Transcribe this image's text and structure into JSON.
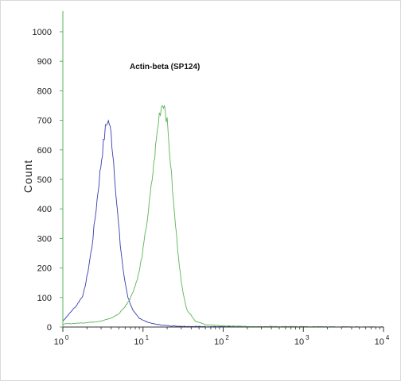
{
  "chart_data": {
    "type": "line",
    "title": "Actin-beta (SP124)",
    "ylabel": "Count",
    "xlabel": "",
    "x_scale": "log",
    "xlim": [
      1,
      10000
    ],
    "ylim": [
      0,
      1000
    ],
    "y_ticks": [
      "0",
      "100",
      "200",
      "300",
      "400",
      "500",
      "600",
      "700",
      "800",
      "900",
      "1000"
    ],
    "x_ticks": [
      {
        "base": "10",
        "exp": "0"
      },
      {
        "base": "10",
        "exp": "1"
      },
      {
        "base": "10",
        "exp": "2"
      },
      {
        "base": "10",
        "exp": "3"
      },
      {
        "base": "10",
        "exp": "4"
      }
    ],
    "grid": false,
    "series": [
      {
        "color": "#3b3bb0",
        "x": [
          1,
          1.2,
          1.5,
          1.8,
          2.0,
          2.3,
          2.6,
          2.9,
          3.2,
          3.4,
          3.6,
          3.8,
          4.0,
          4.3,
          4.7,
          5.2,
          5.8,
          6.5,
          7.5,
          9.0,
          11,
          14,
          18,
          25,
          40,
          100,
          10000
        ],
        "y": [
          20,
          45,
          75,
          110,
          170,
          270,
          400,
          520,
          620,
          670,
          700,
          690,
          650,
          560,
          420,
          280,
          170,
          100,
          55,
          30,
          18,
          10,
          6,
          3,
          2,
          1,
          0
        ]
      },
      {
        "color": "#5ab55a",
        "x": [
          1,
          2,
          3,
          4,
          5,
          6,
          7,
          8,
          9,
          10,
          11,
          12,
          13,
          14,
          15,
          16,
          17,
          18,
          19,
          20,
          22,
          24,
          27,
          30,
          35,
          45,
          60,
          100,
          200,
          10000
        ],
        "y": [
          10,
          15,
          20,
          30,
          45,
          70,
          100,
          140,
          190,
          260,
          340,
          420,
          500,
          580,
          660,
          720,
          750,
          760,
          740,
          690,
          560,
          420,
          270,
          150,
          60,
          20,
          8,
          4,
          2,
          0
        ]
      }
    ]
  }
}
